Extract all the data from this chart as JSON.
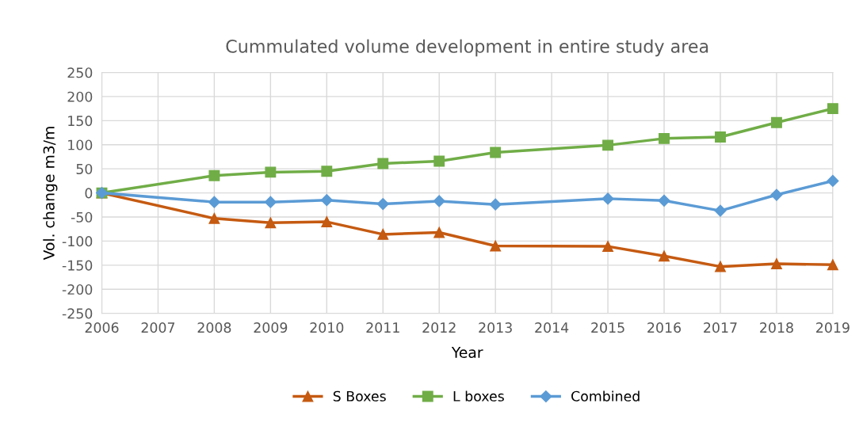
{
  "chart_data": {
    "type": "line",
    "title": "Cummulated volume development in entire study area",
    "xlabel": "Year",
    "ylabel": "Vol. change m3/m",
    "x": [
      2006,
      2008,
      2009,
      2010,
      2011,
      2012,
      2013,
      2015,
      2016,
      2017,
      2018,
      2019
    ],
    "series": [
      {
        "name": "S Boxes",
        "color": "#c55a11",
        "marker": "triangle",
        "values": [
          0,
          -53,
          -62,
          -60,
          -86,
          -82,
          -110,
          -111,
          -131,
          -153,
          -147,
          -149
        ]
      },
      {
        "name": "L boxes",
        "color": "#70ad47",
        "marker": "square",
        "values": [
          0,
          36,
          43,
          45,
          61,
          66,
          84,
          99,
          113,
          116,
          146,
          175
        ]
      },
      {
        "name": "Combined",
        "color": "#5b9bd5",
        "marker": "diamond",
        "values": [
          0,
          -19,
          -19,
          -15,
          -23,
          -17,
          -24,
          -12,
          -16,
          -37,
          -4,
          25
        ]
      }
    ],
    "xlim": [
      2006,
      2019
    ],
    "xticks": [
      2006,
      2007,
      2008,
      2009,
      2010,
      2011,
      2012,
      2013,
      2014,
      2015,
      2016,
      2017,
      2018,
      2019
    ],
    "ylim": [
      -250,
      250
    ],
    "yticks": [
      -250,
      -200,
      -150,
      -100,
      -50,
      0,
      50,
      100,
      150,
      200,
      250
    ],
    "grid": true,
    "legend": "bottom",
    "line_style": "solid"
  }
}
